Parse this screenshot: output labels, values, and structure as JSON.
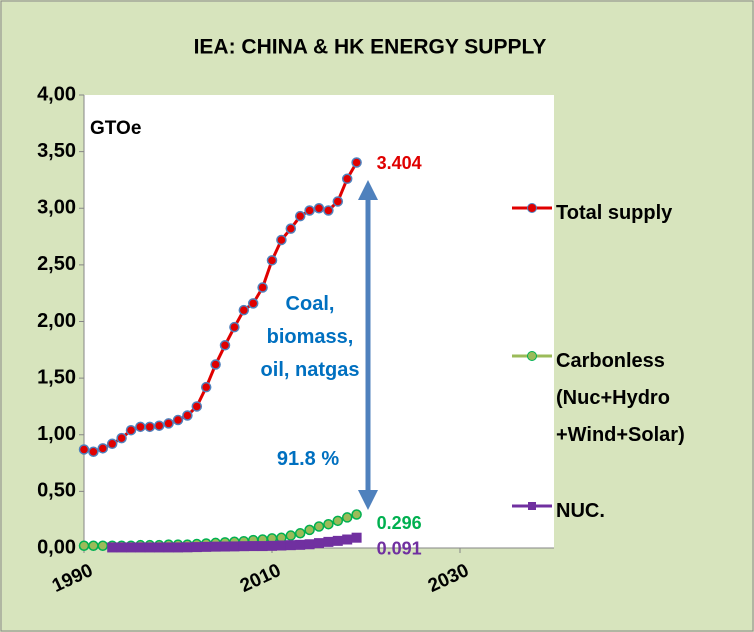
{
  "chart_data": {
    "type": "line",
    "title": "IEA: CHINA & HK ENERGY SUPPLY",
    "y_label": "GTOe",
    "annotations": [
      "Coal, biomass, oil, natgas",
      "91.8 %"
    ],
    "x": [
      1990,
      1991,
      1992,
      1993,
      1994,
      1995,
      1996,
      1997,
      1998,
      1999,
      2000,
      2001,
      2002,
      2003,
      2004,
      2005,
      2006,
      2007,
      2008,
      2009,
      2010,
      2011,
      2012,
      2013,
      2014,
      2015,
      2016,
      2017,
      2018,
      2019
    ],
    "xlim": [
      1990,
      2040
    ],
    "xticks": [
      1990,
      2010,
      2030
    ],
    "ylim": [
      0,
      4
    ],
    "yticks": [
      {
        "value": 0,
        "label": "0,00"
      },
      {
        "value": 0.5,
        "label": "0,50"
      },
      {
        "value": 1,
        "label": "1,00"
      },
      {
        "value": 1.5,
        "label": "1,50"
      },
      {
        "value": 2,
        "label": "2,00"
      },
      {
        "value": 2.5,
        "label": "2,50"
      },
      {
        "value": 3,
        "label": "3,00"
      },
      {
        "value": 3.5,
        "label": "3,50"
      },
      {
        "value": 4,
        "label": "4,00"
      }
    ],
    "legend": "right",
    "series": [
      {
        "name": "Total supply",
        "color": "#e00000",
        "marker_edge": "#4f81bd",
        "marker": "circle",
        "values": [
          0.87,
          0.85,
          0.88,
          0.92,
          0.97,
          1.04,
          1.07,
          1.07,
          1.08,
          1.1,
          1.13,
          1.17,
          1.25,
          1.42,
          1.62,
          1.79,
          1.95,
          2.1,
          2.16,
          2.3,
          2.54,
          2.72,
          2.82,
          2.93,
          2.98,
          3.0,
          2.98,
          3.06,
          3.26,
          3.404
        ]
      },
      {
        "name": "Carbonless (Nuc+Hydro +Wind+Solar)",
        "color": "#9bbb59",
        "marker_edge": "#00b050",
        "marker": "circle",
        "label_color": "#00b050",
        "values": [
          0.02,
          0.02,
          0.02,
          0.02,
          0.02,
          0.02,
          0.025,
          0.025,
          0.025,
          0.03,
          0.03,
          0.03,
          0.035,
          0.04,
          0.045,
          0.05,
          0.055,
          0.06,
          0.07,
          0.075,
          0.085,
          0.09,
          0.11,
          0.13,
          0.16,
          0.19,
          0.21,
          0.24,
          0.27,
          0.296
        ]
      },
      {
        "name": "NUC.",
        "color": "#7030a0",
        "marker_edge": "#7030a0",
        "marker": "square",
        "values": [
          null,
          null,
          null,
          0.005,
          0.005,
          0.005,
          0.005,
          0.005,
          0.005,
          0.005,
          0.005,
          0.006,
          0.008,
          0.01,
          0.012,
          0.013,
          0.014,
          0.016,
          0.017,
          0.017,
          0.019,
          0.022,
          0.025,
          0.028,
          0.033,
          0.043,
          0.054,
          0.063,
          0.075,
          0.091
        ]
      }
    ]
  }
}
